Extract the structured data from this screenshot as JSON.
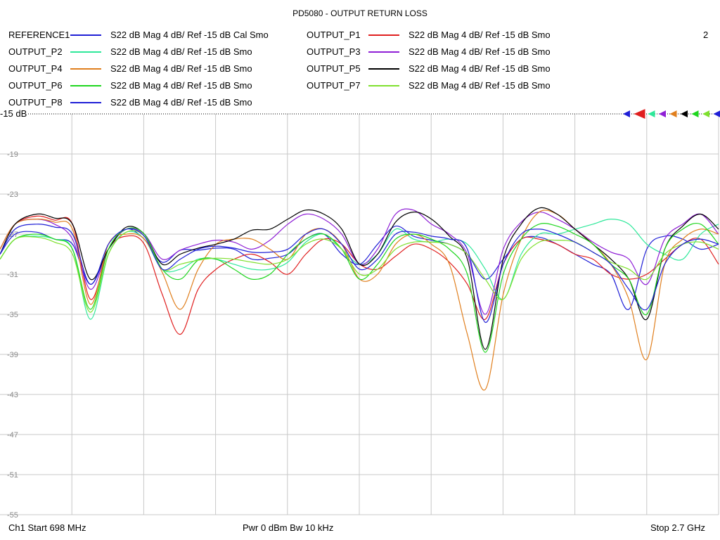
{
  "window": {
    "title": "PD5080 - OUTPUT RETURN LOSS",
    "channel_number": "2"
  },
  "reference_label": "-15 dB",
  "legend": [
    {
      "name": "REFERENCE1",
      "desc": "S22  dB Mag  4 dB/ Ref -15 dB  Cal Smo",
      "color": "#1f1fd6"
    },
    {
      "name": "OUTPUT_P2",
      "desc": "S22  dB Mag  4 dB/ Ref -15 dB  Smo",
      "color": "#2ee89a"
    },
    {
      "name": "OUTPUT_P4",
      "desc": "S22  dB Mag  4 dB/ Ref -15 dB  Smo",
      "color": "#e07f1e"
    },
    {
      "name": "OUTPUT_P6",
      "desc": "S22  dB Mag  4 dB/ Ref -15 dB  Smo",
      "color": "#1fd61f"
    },
    {
      "name": "OUTPUT_P8",
      "desc": "S22  dB Mag  4 dB/ Ref -15 dB  Smo",
      "color": "#1f1fd6"
    },
    {
      "name": "OUTPUT_P1",
      "desc": "S22  dB Mag  4 dB/ Ref -15 dB  Smo",
      "color": "#e01f1f"
    },
    {
      "name": "OUTPUT_P3",
      "desc": "S22  dB Mag  4 dB/ Ref -15 dB  Smo",
      "color": "#8f1fd6"
    },
    {
      "name": "OUTPUT_P5",
      "desc": "S22  dB Mag  4 dB/ Ref -15 dB  Smo",
      "color": "#000000"
    },
    {
      "name": "OUTPUT_P7",
      "desc": "S22  dB Mag  4 dB/ Ref -15 dB  Smo",
      "color": "#7fe02e"
    }
  ],
  "footer": {
    "start": "Ch1  Start  698 MHz",
    "power": "Pwr  0 dBm  Bw  10 kHz",
    "stop": "Stop  2.7 GHz"
  },
  "chart_data": {
    "type": "line",
    "title": "PD5080 - OUTPUT RETURN LOSS",
    "xlabel": "",
    "ylabel": "",
    "x_unit": "MHz",
    "xlim": [
      698,
      2700
    ],
    "ylim": [
      -55,
      -15
    ],
    "ytick_labels": [
      "-15",
      "-19",
      "-23",
      "-27",
      "-31",
      "-35",
      "-39",
      "-43",
      "-47",
      "-51",
      "-55"
    ],
    "grid": true,
    "reference_marker_colors": [
      "#1f1fd6",
      "#e01f1f",
      "#2ee89a",
      "#8f1fd6",
      "#e07f1e",
      "#000000",
      "#1fd61f",
      "#7fe02e",
      "#1f1fd6"
    ],
    "x": [
      698,
      740,
      800,
      850,
      900,
      950,
      1000,
      1050,
      1100,
      1150,
      1200,
      1250,
      1300,
      1350,
      1400,
      1450,
      1500,
      1550,
      1600,
      1650,
      1700,
      1750,
      1800,
      1850,
      1900,
      1950,
      2000,
      2050,
      2100,
      2150,
      2200,
      2250,
      2300,
      2350,
      2400,
      2450,
      2500,
      2550,
      2600,
      2650,
      2700
    ],
    "series": [
      {
        "name": "REFERENCE1",
        "color": "#1f1fd6",
        "values": [
          -29.0,
          -27.0,
          -26.8,
          -27.5,
          -28.0,
          -32.0,
          -28.5,
          -26.5,
          -27.5,
          -29.8,
          -28.6,
          -28.6,
          -28.4,
          -28.5,
          -29.5,
          -29.4,
          -29.0,
          -27.5,
          -27.0,
          -29.0,
          -30.0,
          -28.0,
          -26.2,
          -27.2,
          -27.6,
          -28.0,
          -29.0,
          -31.5,
          -29.5,
          -27.5,
          -27.3,
          -28.0,
          -29.0,
          -30.0,
          -31.0,
          -34.5,
          -28.5,
          -27.2,
          -27.5,
          -28.5,
          -28.0
        ]
      },
      {
        "name": "OUTPUT_P1",
        "color": "#e01f1f",
        "values": [
          -28.5,
          -26.0,
          -25.2,
          -25.6,
          -26.0,
          -33.5,
          -28.5,
          -27.2,
          -28.0,
          -33.0,
          -37.0,
          -32.5,
          -30.5,
          -29.5,
          -29.0,
          -29.8,
          -31.0,
          -29.0,
          -27.5,
          -28.0,
          -30.0,
          -30.5,
          -29.2,
          -28.0,
          -28.5,
          -29.8,
          -32.0,
          -35.5,
          -30.0,
          -27.5,
          -27.5,
          -28.0,
          -29.0,
          -29.5,
          -31.0,
          -31.5,
          -31.0,
          -29.5,
          -28.0,
          -27.5,
          -30.0
        ]
      },
      {
        "name": "OUTPUT_P2",
        "color": "#2ee89a",
        "values": [
          -29.5,
          -27.5,
          -27.2,
          -27.5,
          -28.5,
          -35.5,
          -29.0,
          -26.8,
          -27.5,
          -30.5,
          -30.5,
          -29.5,
          -29.5,
          -30.0,
          -30.5,
          -30.5,
          -29.8,
          -27.8,
          -27.0,
          -28.5,
          -30.0,
          -29.0,
          -26.5,
          -27.5,
          -27.8,
          -27.5,
          -28.0,
          -30.5,
          -33.5,
          -29.0,
          -27.0,
          -27.0,
          -26.5,
          -26.0,
          -25.5,
          -26.0,
          -28.0,
          -29.0,
          -29.5,
          -27.0,
          -26.0
        ]
      },
      {
        "name": "OUTPUT_P3",
        "color": "#8f1fd6",
        "values": [
          -28.5,
          -26.0,
          -25.5,
          -26.0,
          -27.5,
          -32.5,
          -28.5,
          -26.5,
          -27.0,
          -29.5,
          -28.6,
          -28.0,
          -27.6,
          -27.8,
          -28.5,
          -27.6,
          -26.0,
          -25.0,
          -25.5,
          -27.0,
          -30.0,
          -28.5,
          -25.0,
          -24.6,
          -26.0,
          -27.0,
          -29.0,
          -35.0,
          -28.5,
          -25.8,
          -24.8,
          -25.5,
          -26.5,
          -27.8,
          -28.8,
          -29.5,
          -32.0,
          -27.5,
          -26.0,
          -25.0,
          -27.0
        ]
      },
      {
        "name": "OUTPUT_P4",
        "color": "#e07f1e",
        "values": [
          -28.5,
          -26.0,
          -25.5,
          -25.8,
          -26.5,
          -34.0,
          -28.0,
          -27.0,
          -27.5,
          -30.8,
          -34.5,
          -30.5,
          -28.0,
          -27.5,
          -27.5,
          -28.5,
          -29.5,
          -27.0,
          -26.5,
          -28.0,
          -31.5,
          -31.0,
          -28.0,
          -27.0,
          -28.0,
          -30.0,
          -37.0,
          -42.5,
          -33.0,
          -27.5,
          -24.8,
          -25.0,
          -26.5,
          -28.0,
          -30.0,
          -33.5,
          -39.5,
          -30.0,
          -27.5,
          -26.5,
          -27.0
        ]
      },
      {
        "name": "OUTPUT_P5",
        "color": "#000000",
        "values": [
          -29.0,
          -26.0,
          -25.0,
          -25.4,
          -26.0,
          -31.5,
          -28.5,
          -26.3,
          -27.0,
          -30.0,
          -29.0,
          -28.4,
          -28.0,
          -27.5,
          -26.6,
          -26.5,
          -25.5,
          -24.6,
          -25.0,
          -26.5,
          -30.0,
          -29.0,
          -25.8,
          -24.8,
          -25.5,
          -27.2,
          -29.5,
          -38.5,
          -29.5,
          -26.0,
          -24.4,
          -25.0,
          -26.5,
          -28.0,
          -29.5,
          -31.5,
          -35.5,
          -28.5,
          -26.2,
          -25.0,
          -26.5
        ]
      },
      {
        "name": "OUTPUT_P6",
        "color": "#1fd61f",
        "values": [
          -29.5,
          -27.5,
          -27.0,
          -27.5,
          -28.5,
          -34.5,
          -28.5,
          -26.5,
          -27.0,
          -30.5,
          -31.5,
          -29.6,
          -29.5,
          -30.5,
          -31.5,
          -31.0,
          -29.0,
          -27.5,
          -27.0,
          -28.5,
          -31.5,
          -30.0,
          -27.5,
          -27.0,
          -27.5,
          -28.5,
          -31.0,
          -38.8,
          -31.0,
          -27.5,
          -26.0,
          -26.2,
          -27.0,
          -28.0,
          -30.0,
          -31.5,
          -35.0,
          -28.5,
          -26.5,
          -26.0,
          -28.0
        ]
      },
      {
        "name": "OUTPUT_P7",
        "color": "#7fe02e",
        "values": [
          -29.5,
          -27.5,
          -27.3,
          -27.8,
          -29.0,
          -34.8,
          -29.0,
          -26.8,
          -27.2,
          -30.5,
          -30.0,
          -29.6,
          -29.4,
          -29.5,
          -29.8,
          -30.0,
          -29.5,
          -28.0,
          -27.5,
          -28.5,
          -31.0,
          -30.5,
          -28.5,
          -27.8,
          -27.8,
          -28.0,
          -29.0,
          -31.5,
          -33.5,
          -29.5,
          -27.8,
          -27.6,
          -27.8,
          -28.8,
          -29.8,
          -30.5,
          -31.5,
          -29.0,
          -28.0,
          -27.8,
          -28.5
        ]
      },
      {
        "name": "OUTPUT_P8",
        "color": "#1f1fd6",
        "values": [
          -29.0,
          -26.5,
          -26.0,
          -26.3,
          -27.0,
          -32.0,
          -28.0,
          -26.5,
          -27.2,
          -30.5,
          -29.5,
          -28.5,
          -28.2,
          -28.4,
          -28.8,
          -28.8,
          -28.5,
          -27.0,
          -26.5,
          -28.0,
          -30.5,
          -29.5,
          -27.0,
          -26.8,
          -27.2,
          -27.5,
          -28.5,
          -35.8,
          -30.0,
          -27.0,
          -26.5,
          -27.0,
          -27.8,
          -28.8,
          -30.0,
          -32.5,
          -34.5,
          -30.0,
          -28.0,
          -27.5,
          -28.0
        ]
      }
    ]
  }
}
